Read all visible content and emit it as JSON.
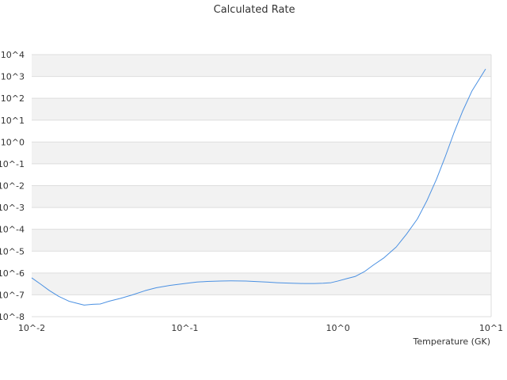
{
  "chart_data": {
    "type": "line",
    "title": "Calculated Rate",
    "xlabel": "Temperature (GK)",
    "ylabel": "",
    "x_scale": "log",
    "y_scale": "log",
    "xlim": [
      0.01,
      10
    ],
    "ylim": [
      1e-08,
      10000
    ],
    "x_ticks": [
      {
        "value": 0.01,
        "label": "10^-2"
      },
      {
        "value": 0.1,
        "label": "10^-1"
      },
      {
        "value": 1,
        "label": "10^0"
      },
      {
        "value": 10,
        "label": "10^1"
      }
    ],
    "y_ticks": [
      {
        "value": 1e-08,
        "label": "10^-8"
      },
      {
        "value": 1e-07,
        "label": "10^-7"
      },
      {
        "value": 1e-06,
        "label": "10^-6"
      },
      {
        "value": 1e-05,
        "label": "10^-5"
      },
      {
        "value": 0.0001,
        "label": "10^-4"
      },
      {
        "value": 0.001,
        "label": "10^-3"
      },
      {
        "value": 0.01,
        "label": "10^-2"
      },
      {
        "value": 0.1,
        "label": "10^-1"
      },
      {
        "value": 1,
        "label": "10^0"
      },
      {
        "value": 10,
        "label": "10^1"
      },
      {
        "value": 100,
        "label": "10^2"
      },
      {
        "value": 1000,
        "label": "10^3"
      },
      {
        "value": 10000,
        "label": "10^4"
      }
    ],
    "grid": "horizontal alternating bands",
    "legend": "none",
    "colors": {
      "line": "#4a90e2",
      "band": "#f2f2f2",
      "gridline": "#dddddd",
      "text": "#333333"
    },
    "series": [
      {
        "x": [
          0.01,
          0.0115,
          0.013,
          0.015,
          0.0175,
          0.02,
          0.022,
          0.025,
          0.028,
          0.032,
          0.038,
          0.045,
          0.055,
          0.065,
          0.08,
          0.1,
          0.12,
          0.14,
          0.17,
          0.2,
          0.25,
          0.3,
          0.35,
          0.4,
          0.5,
          0.6,
          0.7,
          0.8,
          0.9,
          1.0,
          1.15,
          1.3,
          1.5,
          1.7,
          2.0,
          2.4,
          2.8,
          3.3,
          3.8,
          4.4,
          5.0,
          5.7,
          6.5,
          7.5,
          8.5,
          9.2
        ],
        "y": [
          6e-07,
          3e-07,
          1.6e-07,
          8.5e-08,
          5.1e-08,
          4e-08,
          3.4e-08,
          3.7e-08,
          3.8e-08,
          5.1e-08,
          6.9e-08,
          9.7e-08,
          1.55e-07,
          2.1e-07,
          2.7e-07,
          3.3e-07,
          3.85e-07,
          4.1e-07,
          4.3e-07,
          4.35e-07,
          4.3e-07,
          4e-07,
          3.8e-07,
          3.6e-07,
          3.4e-07,
          3.3e-07,
          3.3e-07,
          3.4e-07,
          3.6e-07,
          4.3e-07,
          5.6e-07,
          7e-07,
          1.2e-06,
          2.3e-06,
          5e-06,
          1.55e-05,
          6e-05,
          0.0003,
          0.002,
          0.02,
          0.2,
          2.5,
          25,
          220,
          900,
          2200
        ]
      }
    ]
  }
}
